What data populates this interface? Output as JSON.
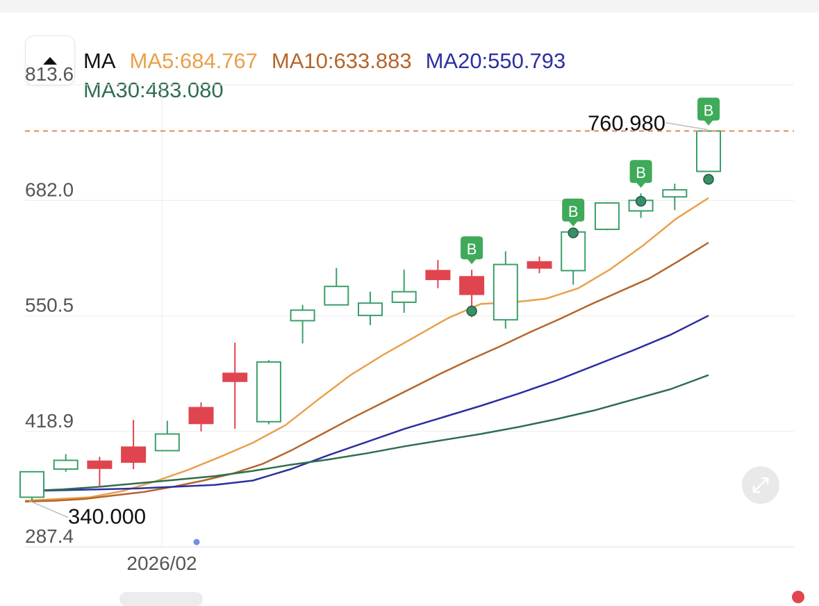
{
  "legend": {
    "ma_label": "MA",
    "ma5": "MA5:684.767",
    "ma10": "MA10:633.883",
    "ma20": "MA20:550.793",
    "ma30": "MA30:483.080"
  },
  "colors": {
    "ma5": "#e9a04a",
    "ma10": "#b5652a",
    "ma20": "#2c2fa0",
    "ma30": "#2e6e4e",
    "up": "#3a9e6a",
    "down": "#e0444f",
    "marker": "#3eaa5a",
    "high_line": "#e08a50"
  },
  "chart_data": {
    "type": "candlestick",
    "y_ticks": [
      "813.6",
      "682.0",
      "550.5",
      "418.9",
      "287.4"
    ],
    "ylim": [
      287.4,
      813.6
    ],
    "x_tick_label": "2026/02",
    "high_label": "760.980",
    "low_label": "340.000",
    "high_value": 760.98,
    "low_value": 340.0,
    "marker_text": "B",
    "candles": [
      {
        "o": 344,
        "c": 373,
        "h": 373,
        "l": 340,
        "dir": "up"
      },
      {
        "o": 376,
        "c": 386,
        "h": 393,
        "l": 373,
        "dir": "up"
      },
      {
        "o": 385,
        "c": 377,
        "h": 390,
        "l": 356,
        "dir": "down"
      },
      {
        "o": 401,
        "c": 384,
        "h": 432,
        "l": 376,
        "dir": "down"
      },
      {
        "o": 397,
        "c": 416,
        "h": 431,
        "l": 397,
        "dir": "up"
      },
      {
        "o": 446,
        "c": 428,
        "h": 452,
        "l": 419,
        "dir": "down"
      },
      {
        "o": 485,
        "c": 476,
        "h": 520,
        "l": 422,
        "dir": "down"
      },
      {
        "o": 430,
        "c": 498,
        "h": 500,
        "l": 427,
        "dir": "up"
      },
      {
        "o": 545,
        "c": 557,
        "h": 563,
        "l": 519,
        "dir": "up"
      },
      {
        "o": 563,
        "c": 584,
        "h": 605,
        "l": 563,
        "dir": "up"
      },
      {
        "o": 551,
        "c": 565,
        "h": 578,
        "l": 540,
        "dir": "up"
      },
      {
        "o": 566,
        "c": 578,
        "h": 603,
        "l": 554,
        "dir": "up"
      },
      {
        "o": 602,
        "c": 592,
        "h": 614,
        "l": 582,
        "dir": "down"
      },
      {
        "o": 595,
        "c": 575,
        "h": 603,
        "l": 549,
        "dir": "down"
      },
      {
        "o": 546,
        "c": 609,
        "h": 624,
        "l": 536,
        "dir": "up"
      },
      {
        "o": 612,
        "c": 605,
        "h": 618,
        "l": 599,
        "dir": "down"
      },
      {
        "o": 602,
        "c": 646,
        "h": 646,
        "l": 586,
        "dir": "up"
      },
      {
        "o": 649,
        "c": 679,
        "h": 680,
        "l": 648,
        "dir": "up"
      },
      {
        "o": 670,
        "c": 682,
        "h": 690,
        "l": 662,
        "dir": "up"
      },
      {
        "o": 686,
        "c": 694,
        "h": 701,
        "l": 671,
        "dir": "up"
      },
      {
        "o": 715,
        "c": 760.98,
        "h": 760.98,
        "l": 715,
        "dir": "up"
      }
    ],
    "series": [
      {
        "name": "MA5",
        "values": [
          340,
          342,
          344,
          351,
          362,
          375,
          390,
          406,
          426,
          455,
          483,
          506,
          527,
          548,
          564,
          566,
          570,
          582,
          604,
          631,
          661,
          684.767
        ]
      },
      {
        "name": "MA10",
        "values": [
          339,
          340,
          342,
          346,
          350,
          356,
          363,
          371,
          382,
          398,
          416,
          434,
          451,
          468,
          485,
          501,
          516,
          532,
          547,
          563,
          578,
          593,
          613,
          633.883
        ]
      },
      {
        "name": "MA20",
        "values": [
          351,
          352,
          353,
          354,
          356,
          358,
          363,
          376,
          392,
          407,
          422,
          435,
          448,
          462,
          477,
          494,
          511,
          529,
          550.793
        ]
      },
      {
        "name": "MA30",
        "values": [
          351,
          353,
          356,
          360,
          364,
          368,
          374,
          381,
          387,
          394,
          402,
          409,
          416,
          424,
          433,
          443,
          455,
          467,
          483.08
        ]
      }
    ],
    "signals": [
      {
        "candle": 13,
        "dot": 556
      },
      {
        "candle": 16,
        "dot": 645
      },
      {
        "candle": 18,
        "dot": 681
      },
      {
        "candle": 20,
        "dot": 706
      }
    ]
  }
}
